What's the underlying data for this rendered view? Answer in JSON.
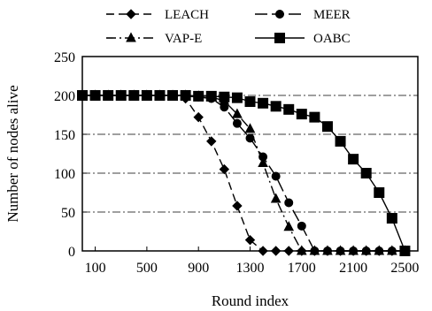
{
  "chart_data": {
    "type": "line",
    "title": "",
    "xlabel": "Round index",
    "ylabel": "Number of nodes alive",
    "xlim": [
      0,
      2600
    ],
    "ylim": [
      0,
      250
    ],
    "x_ticks": [
      100,
      500,
      900,
      1300,
      1700,
      2100,
      2500
    ],
    "y_ticks": [
      0,
      50,
      100,
      150,
      200,
      250
    ],
    "grid": {
      "horizontal": true,
      "style": "dash-dot"
    },
    "legend_position": "top",
    "series": [
      {
        "name": "LEACH",
        "marker": "diamond",
        "line_style": "dashed",
        "color": "#000000",
        "points": [
          [
            0,
            200
          ],
          [
            100,
            200
          ],
          [
            200,
            200
          ],
          [
            300,
            200
          ],
          [
            400,
            200
          ],
          [
            500,
            200
          ],
          [
            600,
            200
          ],
          [
            700,
            200
          ],
          [
            800,
            196
          ],
          [
            900,
            172
          ],
          [
            1000,
            141
          ],
          [
            1100,
            105
          ],
          [
            1200,
            58
          ],
          [
            1300,
            14
          ],
          [
            1400,
            0
          ],
          [
            1500,
            0
          ],
          [
            1600,
            0
          ],
          [
            1700,
            0
          ],
          [
            1800,
            0
          ],
          [
            1900,
            0
          ],
          [
            2000,
            0
          ],
          [
            2100,
            0
          ],
          [
            2200,
            0
          ],
          [
            2300,
            0
          ],
          [
            2400,
            0
          ],
          [
            2500,
            0
          ]
        ]
      },
      {
        "name": "MEER",
        "marker": "circle",
        "line_style": "long-dash",
        "color": "#000000",
        "points": [
          [
            0,
            200
          ],
          [
            100,
            200
          ],
          [
            200,
            200
          ],
          [
            300,
            200
          ],
          [
            400,
            200
          ],
          [
            500,
            200
          ],
          [
            600,
            200
          ],
          [
            700,
            200
          ],
          [
            800,
            199
          ],
          [
            900,
            198
          ],
          [
            1000,
            196
          ],
          [
            1100,
            185
          ],
          [
            1200,
            164
          ],
          [
            1300,
            145
          ],
          [
            1400,
            121
          ],
          [
            1500,
            96
          ],
          [
            1600,
            62
          ],
          [
            1700,
            32
          ],
          [
            1800,
            0
          ],
          [
            1900,
            0
          ],
          [
            2000,
            0
          ],
          [
            2100,
            0
          ],
          [
            2200,
            0
          ],
          [
            2300,
            0
          ],
          [
            2400,
            0
          ],
          [
            2500,
            0
          ]
        ]
      },
      {
        "name": "VAP-E",
        "marker": "triangle",
        "line_style": "dash-dot",
        "color": "#000000",
        "points": [
          [
            0,
            200
          ],
          [
            100,
            200
          ],
          [
            200,
            200
          ],
          [
            300,
            200
          ],
          [
            400,
            200
          ],
          [
            500,
            200
          ],
          [
            600,
            200
          ],
          [
            700,
            200
          ],
          [
            800,
            200
          ],
          [
            900,
            199
          ],
          [
            1000,
            198
          ],
          [
            1100,
            193
          ],
          [
            1200,
            176
          ],
          [
            1300,
            157
          ],
          [
            1400,
            113
          ],
          [
            1500,
            67
          ],
          [
            1600,
            31
          ],
          [
            1700,
            0
          ],
          [
            1800,
            0
          ],
          [
            1900,
            0
          ],
          [
            2000,
            0
          ],
          [
            2100,
            0
          ],
          [
            2200,
            0
          ],
          [
            2300,
            0
          ],
          [
            2400,
            0
          ],
          [
            2500,
            0
          ]
        ]
      },
      {
        "name": "OABC",
        "marker": "square",
        "line_style": "solid",
        "color": "#000000",
        "points": [
          [
            0,
            200
          ],
          [
            100,
            200
          ],
          [
            200,
            200
          ],
          [
            300,
            200
          ],
          [
            400,
            200
          ],
          [
            500,
            200
          ],
          [
            600,
            200
          ],
          [
            700,
            200
          ],
          [
            800,
            200
          ],
          [
            900,
            199
          ],
          [
            1000,
            199
          ],
          [
            1100,
            198
          ],
          [
            1200,
            197
          ],
          [
            1300,
            192
          ],
          [
            1400,
            190
          ],
          [
            1500,
            186
          ],
          [
            1600,
            182
          ],
          [
            1700,
            176
          ],
          [
            1800,
            172
          ],
          [
            1900,
            160
          ],
          [
            2000,
            141
          ],
          [
            2100,
            118
          ],
          [
            2200,
            100
          ],
          [
            2300,
            75
          ],
          [
            2400,
            42
          ],
          [
            2500,
            0
          ]
        ]
      }
    ]
  }
}
